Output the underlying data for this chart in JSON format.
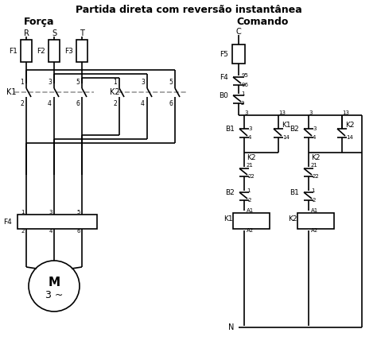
{
  "title": "Partida direta com reversão instantânea",
  "subtitle_left": "Força",
  "subtitle_right": "Comando",
  "bg_color": "#ffffff",
  "line_color": "#000000",
  "dashed_color": "#aaaaaa",
  "font_color": "#000000",
  "lw": 1.2
}
